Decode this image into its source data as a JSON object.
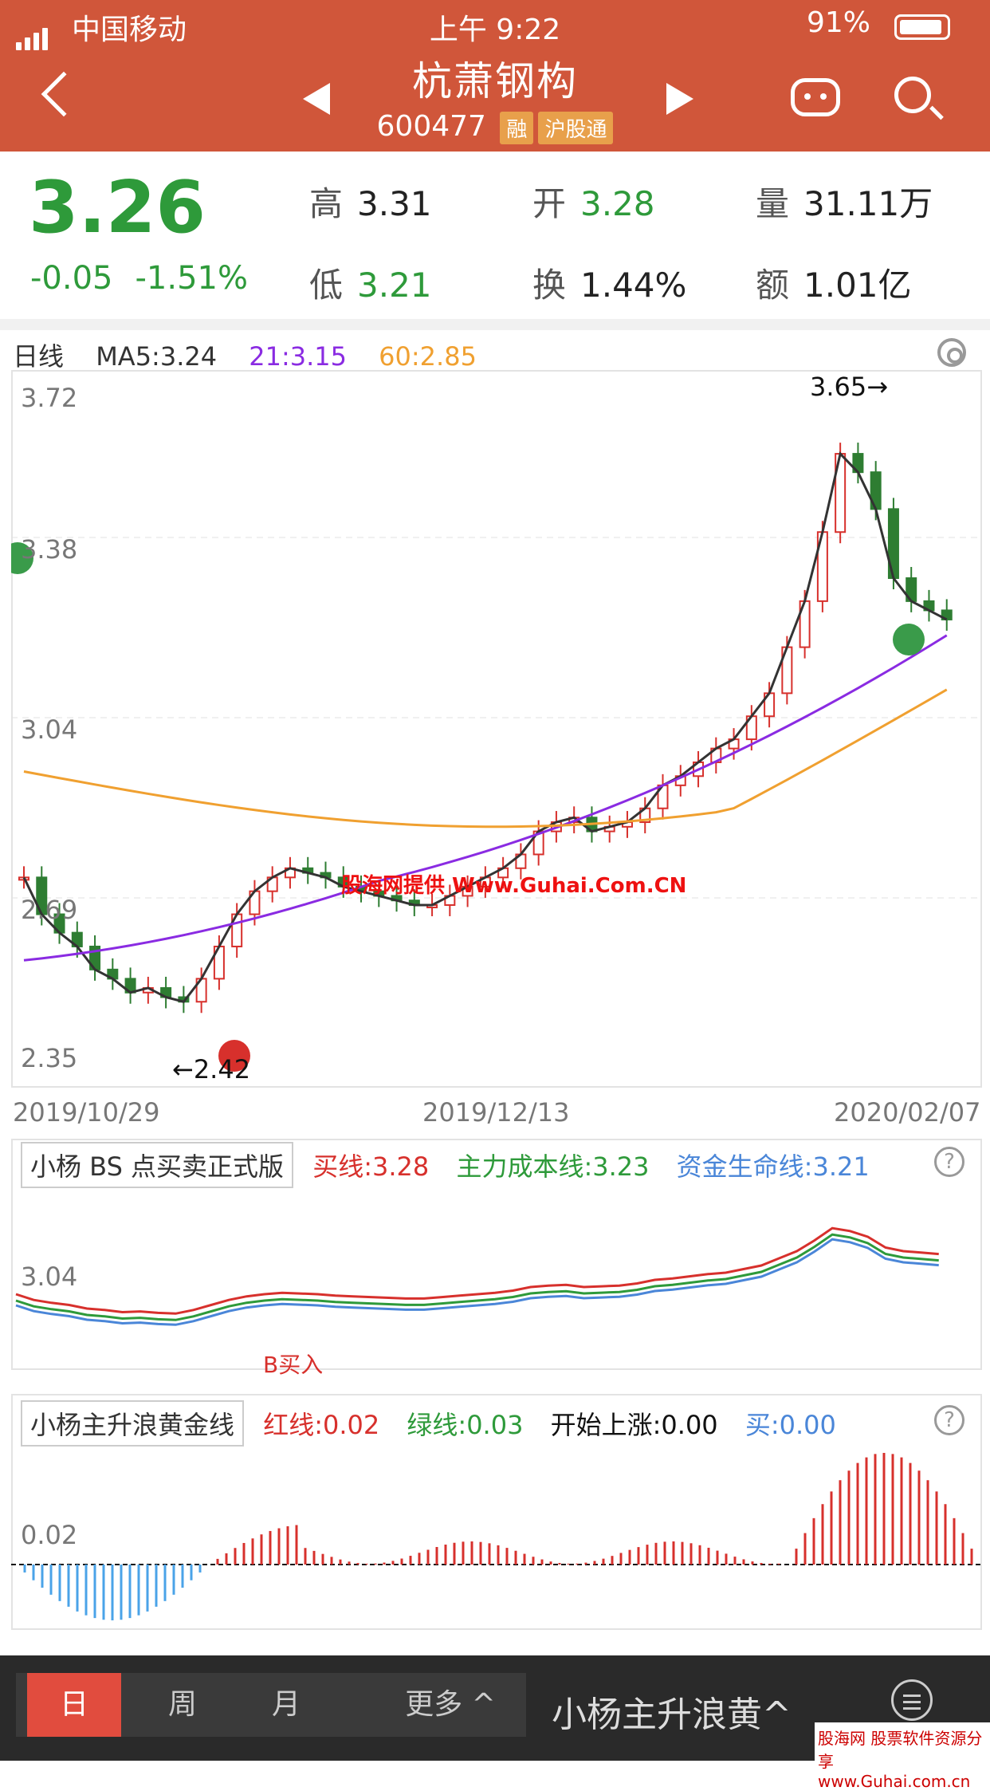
{
  "status": {
    "carrier": "中国移动",
    "time": "上午 9:22",
    "battery": "91%"
  },
  "header": {
    "title": "杭萧钢构",
    "code": "600477",
    "tag1": "融",
    "tag2": "沪股通"
  },
  "quote": {
    "price": "3.26",
    "change": "-0.05",
    "change_pct": "-1.51%",
    "high_label": "高",
    "high": "3.31",
    "open_label": "开",
    "open": "3.28",
    "vol_label": "量",
    "vol": "31.11万",
    "low_label": "低",
    "low": "3.21",
    "turn_label": "换",
    "turn": "1.44%",
    "amt_label": "额",
    "amt": "1.01亿"
  },
  "main_chart": {
    "period": "日线",
    "ma5": "MA5:3.24",
    "ma21": "21:3.15",
    "ma60": "60:2.85",
    "y_labels": [
      "3.72",
      "3.38",
      "3.04",
      "2.69",
      "2.35"
    ],
    "max_note": "3.65→",
    "min_note": "←2.42",
    "dates": [
      "2019/10/29",
      "2019/12/13",
      "2020/02/07"
    ],
    "signal_empty": "空",
    "signal_long": "多",
    "watermark": "股海网提供 Www.Guhai.Com.CN",
    "colors": {
      "up": "#d7302c",
      "down": "#2e7d32",
      "ma5": "#333333",
      "ma21": "#8a2be2",
      "ma60": "#f0a030"
    }
  },
  "bs_panel": {
    "name": "小杨 BS 点买卖正式版",
    "buy_line": "买线:3.28",
    "main_cost": "主力成本线:3.23",
    "life_line": "资金生命线:3.21",
    "y_label": "3.04",
    "buy_tag": "B买入"
  },
  "wave_panel": {
    "name": "小杨主升浪黄金线",
    "red": "红线:0.02",
    "green": "绿线:0.03",
    "start": "开始上涨:0.00",
    "buy": "买:0.00",
    "y_label": "0.02"
  },
  "bottom": {
    "tab_day": "日",
    "tab_week": "周",
    "tab_month": "月",
    "more": "更多 ^",
    "indicator": "小杨主升浪黄^"
  },
  "footer_watermark": "股海网 股票软件资源分享 www.Guhai.com.cn"
}
